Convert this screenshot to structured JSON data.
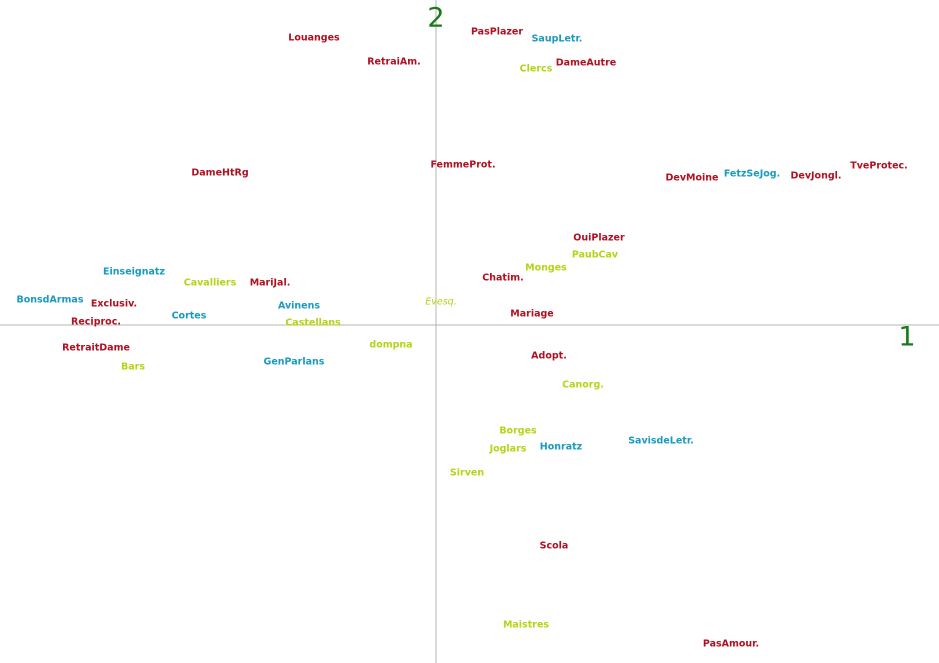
{
  "chart_data": {
    "type": "scatter",
    "title": "",
    "xlabel": "1",
    "ylabel": "2",
    "xlim": [
      -436,
      503
    ],
    "ylim": [
      -338,
      325
    ],
    "grid": false,
    "legend": "none",
    "group_colors": {
      "red": "#b01020",
      "cyan": "#1a9ac0",
      "yellow": "#b4d414"
    },
    "points": [
      {
        "label": "Louanges",
        "x": -122,
        "y": 287,
        "group": "red"
      },
      {
        "label": "PasPlazer",
        "x": 61,
        "y": 293,
        "group": "red"
      },
      {
        "label": "SaupLetr.",
        "x": 121,
        "y": 286,
        "group": "cyan"
      },
      {
        "label": "RetraiAm.",
        "x": -42,
        "y": 263,
        "group": "red"
      },
      {
        "label": "Clercs",
        "x": 100,
        "y": 256,
        "group": "yellow"
      },
      {
        "label": "DameAutre",
        "x": 150,
        "y": 262,
        "group": "red"
      },
      {
        "label": "FemmeProt.",
        "x": 27,
        "y": 160,
        "group": "red"
      },
      {
        "label": "DameHtRg",
        "x": -216,
        "y": 152,
        "group": "red"
      },
      {
        "label": "DevMoine",
        "x": 256,
        "y": 147,
        "group": "red"
      },
      {
        "label": "FetzSeJog.",
        "x": 316,
        "y": 151,
        "group": "cyan"
      },
      {
        "label": "DevJongl.",
        "x": 380,
        "y": 149,
        "group": "red"
      },
      {
        "label": "TveProtec.",
        "x": 443,
        "y": 159,
        "group": "red"
      },
      {
        "label": "OuiPlazer",
        "x": 163,
        "y": 87,
        "group": "red"
      },
      {
        "label": "PaubCav",
        "x": 159,
        "y": 70,
        "group": "yellow"
      },
      {
        "label": "Monges",
        "x": 110,
        "y": 57,
        "group": "yellow"
      },
      {
        "label": "Chatim.",
        "x": 67,
        "y": 47,
        "group": "red"
      },
      {
        "label": "Einseignatz",
        "x": -302,
        "y": 53,
        "group": "cyan"
      },
      {
        "label": "Cavalliers",
        "x": -226,
        "y": 42,
        "group": "yellow"
      },
      {
        "label": "MariJal.",
        "x": -166,
        "y": 42,
        "group": "red"
      },
      {
        "label": "BonsdArmas",
        "x": -386,
        "y": 25,
        "group": "cyan"
      },
      {
        "label": "Exclusiv.",
        "x": -322,
        "y": 21,
        "group": "red"
      },
      {
        "label": "Avinens",
        "x": -137,
        "y": 19,
        "group": "cyan"
      },
      {
        "label": "Evesq.",
        "x": 5,
        "y": 23,
        "group": "yellow",
        "italic": true
      },
      {
        "label": "Cortes",
        "x": -247,
        "y": 9,
        "group": "cyan"
      },
      {
        "label": "Mariage",
        "x": 96,
        "y": 11,
        "group": "red"
      },
      {
        "label": "Reciproc.",
        "x": -340,
        "y": 3,
        "group": "red"
      },
      {
        "label": "Castellans",
        "x": -123,
        "y": 2,
        "group": "yellow"
      },
      {
        "label": "dompna",
        "x": -45,
        "y": -20,
        "group": "yellow"
      },
      {
        "label": "RetraitDame",
        "x": -340,
        "y": -23,
        "group": "red"
      },
      {
        "label": "Adopt.",
        "x": 113,
        "y": -31,
        "group": "red"
      },
      {
        "label": "GenParlans",
        "x": -142,
        "y": -37,
        "group": "cyan"
      },
      {
        "label": "Bars",
        "x": -303,
        "y": -42,
        "group": "yellow"
      },
      {
        "label": "Canorg.",
        "x": 147,
        "y": -60,
        "group": "yellow"
      },
      {
        "label": "Borges",
        "x": 82,
        "y": -106,
        "group": "yellow"
      },
      {
        "label": "SavisdeLetr.",
        "x": 225,
        "y": -116,
        "group": "cyan"
      },
      {
        "label": "Honratz",
        "x": 125,
        "y": -122,
        "group": "cyan"
      },
      {
        "label": "Joglars",
        "x": 72,
        "y": -124,
        "group": "yellow"
      },
      {
        "label": "Sirven",
        "x": 31,
        "y": -148,
        "group": "yellow"
      },
      {
        "label": "Scola",
        "x": 118,
        "y": -221,
        "group": "red"
      },
      {
        "label": "Maistres",
        "x": 90,
        "y": -300,
        "group": "yellow"
      },
      {
        "label": "PasAmour.",
        "x": 295,
        "y": -319,
        "group": "red"
      }
    ]
  }
}
